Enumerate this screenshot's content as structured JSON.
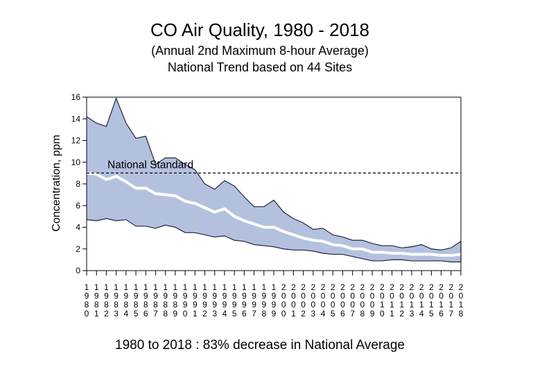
{
  "chart_data": {
    "type": "area",
    "title": "CO Air Quality, 1980 - 2018",
    "subtitle_lines": [
      "(Annual 2nd Maximum 8-hour Average)",
      "National Trend based on 44 Sites"
    ],
    "xlabel": "",
    "ylabel": "Concentration, ppm",
    "ylim": [
      0,
      16
    ],
    "yticks": [
      "0",
      "2",
      "4",
      "6",
      "8",
      "10",
      "12",
      "14",
      "16"
    ],
    "x": [
      1980,
      1981,
      1982,
      1983,
      1984,
      1985,
      1986,
      1987,
      1988,
      1989,
      1990,
      1991,
      1992,
      1993,
      1994,
      1995,
      1996,
      1997,
      1998,
      1999,
      2000,
      2001,
      2002,
      2003,
      2004,
      2005,
      2006,
      2007,
      2008,
      2009,
      2010,
      2011,
      2012,
      2013,
      2014,
      2015,
      2016,
      2017,
      2018
    ],
    "series": [
      {
        "values": [
          14.2,
          13.6,
          13.3,
          15.9,
          13.6,
          12.2,
          12.4,
          9.8,
          10.4,
          10.4,
          9.8,
          9.3,
          8.0,
          7.5,
          8.3,
          7.8,
          6.8,
          5.9,
          5.9,
          6.5,
          5.4,
          4.8,
          4.4,
          3.8,
          3.9,
          3.3,
          3.1,
          2.8,
          2.8,
          2.5,
          2.3,
          2.3,
          2.1,
          2.2,
          2.4,
          2.0,
          1.9,
          2.1,
          2.7
        ]
      },
      {
        "values": [
          9.0,
          8.9,
          8.4,
          8.7,
          8.2,
          7.6,
          7.6,
          7.1,
          7.0,
          6.9,
          6.4,
          6.2,
          5.8,
          5.4,
          5.7,
          5.0,
          4.6,
          4.3,
          4.0,
          4.0,
          3.6,
          3.3,
          3.0,
          2.8,
          2.7,
          2.4,
          2.3,
          2.0,
          2.0,
          1.7,
          1.7,
          1.6,
          1.6,
          1.5,
          1.5,
          1.5,
          1.4,
          1.4,
          1.5
        ]
      },
      {
        "values": [
          4.7,
          4.6,
          4.8,
          4.6,
          4.7,
          4.1,
          4.1,
          3.9,
          4.2,
          4.0,
          3.5,
          3.5,
          3.3,
          3.1,
          3.2,
          2.8,
          2.7,
          2.4,
          2.3,
          2.2,
          2.0,
          1.9,
          1.9,
          1.8,
          1.6,
          1.5,
          1.5,
          1.3,
          1.1,
          0.9,
          0.9,
          1.0,
          1.0,
          0.9,
          0.9,
          0.9,
          0.9,
          0.8,
          0.8
        ]
      }
    ],
    "national_standard": {
      "value": 9,
      "label": "National Standard"
    },
    "grid": false,
    "legend": "none",
    "colors": {
      "band": "#b4c1de",
      "band_edge": "#1f2540",
      "mean_line": "#ffffff",
      "standard_line": "#000000"
    },
    "note": "1980 to 2018 :  83% decrease in National Average"
  }
}
